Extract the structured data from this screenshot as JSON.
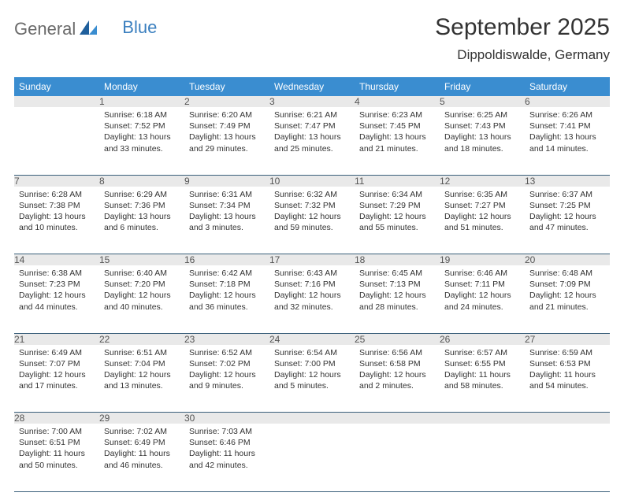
{
  "brand": {
    "left": "General",
    "right": "Blue"
  },
  "title": "September 2025",
  "location": "Dippoldiswalde, Germany",
  "colors": {
    "header_bg": "#3a8dd0",
    "header_fg": "#ffffff",
    "daynum_bg": "#e9e9e9",
    "rule": "#3a5f7a",
    "text": "#333333"
  },
  "weekdays": [
    "Sunday",
    "Monday",
    "Tuesday",
    "Wednesday",
    "Thursday",
    "Friday",
    "Saturday"
  ],
  "weeks": [
    {
      "nums": [
        "",
        "1",
        "2",
        "3",
        "4",
        "5",
        "6"
      ],
      "cells": [
        null,
        {
          "sr": "6:18 AM",
          "ss": "7:52 PM",
          "dl": "13 hours and 33 minutes."
        },
        {
          "sr": "6:20 AM",
          "ss": "7:49 PM",
          "dl": "13 hours and 29 minutes."
        },
        {
          "sr": "6:21 AM",
          "ss": "7:47 PM",
          "dl": "13 hours and 25 minutes."
        },
        {
          "sr": "6:23 AM",
          "ss": "7:45 PM",
          "dl": "13 hours and 21 minutes."
        },
        {
          "sr": "6:25 AM",
          "ss": "7:43 PM",
          "dl": "13 hours and 18 minutes."
        },
        {
          "sr": "6:26 AM",
          "ss": "7:41 PM",
          "dl": "13 hours and 14 minutes."
        }
      ]
    },
    {
      "nums": [
        "7",
        "8",
        "9",
        "10",
        "11",
        "12",
        "13"
      ],
      "cells": [
        {
          "sr": "6:28 AM",
          "ss": "7:38 PM",
          "dl": "13 hours and 10 minutes."
        },
        {
          "sr": "6:29 AM",
          "ss": "7:36 PM",
          "dl": "13 hours and 6 minutes."
        },
        {
          "sr": "6:31 AM",
          "ss": "7:34 PM",
          "dl": "13 hours and 3 minutes."
        },
        {
          "sr": "6:32 AM",
          "ss": "7:32 PM",
          "dl": "12 hours and 59 minutes."
        },
        {
          "sr": "6:34 AM",
          "ss": "7:29 PM",
          "dl": "12 hours and 55 minutes."
        },
        {
          "sr": "6:35 AM",
          "ss": "7:27 PM",
          "dl": "12 hours and 51 minutes."
        },
        {
          "sr": "6:37 AM",
          "ss": "7:25 PM",
          "dl": "12 hours and 47 minutes."
        }
      ]
    },
    {
      "nums": [
        "14",
        "15",
        "16",
        "17",
        "18",
        "19",
        "20"
      ],
      "cells": [
        {
          "sr": "6:38 AM",
          "ss": "7:23 PM",
          "dl": "12 hours and 44 minutes."
        },
        {
          "sr": "6:40 AM",
          "ss": "7:20 PM",
          "dl": "12 hours and 40 minutes."
        },
        {
          "sr": "6:42 AM",
          "ss": "7:18 PM",
          "dl": "12 hours and 36 minutes."
        },
        {
          "sr": "6:43 AM",
          "ss": "7:16 PM",
          "dl": "12 hours and 32 minutes."
        },
        {
          "sr": "6:45 AM",
          "ss": "7:13 PM",
          "dl": "12 hours and 28 minutes."
        },
        {
          "sr": "6:46 AM",
          "ss": "7:11 PM",
          "dl": "12 hours and 24 minutes."
        },
        {
          "sr": "6:48 AM",
          "ss": "7:09 PM",
          "dl": "12 hours and 21 minutes."
        }
      ]
    },
    {
      "nums": [
        "21",
        "22",
        "23",
        "24",
        "25",
        "26",
        "27"
      ],
      "cells": [
        {
          "sr": "6:49 AM",
          "ss": "7:07 PM",
          "dl": "12 hours and 17 minutes."
        },
        {
          "sr": "6:51 AM",
          "ss": "7:04 PM",
          "dl": "12 hours and 13 minutes."
        },
        {
          "sr": "6:52 AM",
          "ss": "7:02 PM",
          "dl": "12 hours and 9 minutes."
        },
        {
          "sr": "6:54 AM",
          "ss": "7:00 PM",
          "dl": "12 hours and 5 minutes."
        },
        {
          "sr": "6:56 AM",
          "ss": "6:58 PM",
          "dl": "12 hours and 2 minutes."
        },
        {
          "sr": "6:57 AM",
          "ss": "6:55 PM",
          "dl": "11 hours and 58 minutes."
        },
        {
          "sr": "6:59 AM",
          "ss": "6:53 PM",
          "dl": "11 hours and 54 minutes."
        }
      ]
    },
    {
      "nums": [
        "28",
        "29",
        "30",
        "",
        "",
        "",
        ""
      ],
      "cells": [
        {
          "sr": "7:00 AM",
          "ss": "6:51 PM",
          "dl": "11 hours and 50 minutes."
        },
        {
          "sr": "7:02 AM",
          "ss": "6:49 PM",
          "dl": "11 hours and 46 minutes."
        },
        {
          "sr": "7:03 AM",
          "ss": "6:46 PM",
          "dl": "11 hours and 42 minutes."
        },
        null,
        null,
        null,
        null
      ]
    }
  ],
  "labels": {
    "sunrise": "Sunrise:",
    "sunset": "Sunset:",
    "daylight": "Daylight:"
  }
}
